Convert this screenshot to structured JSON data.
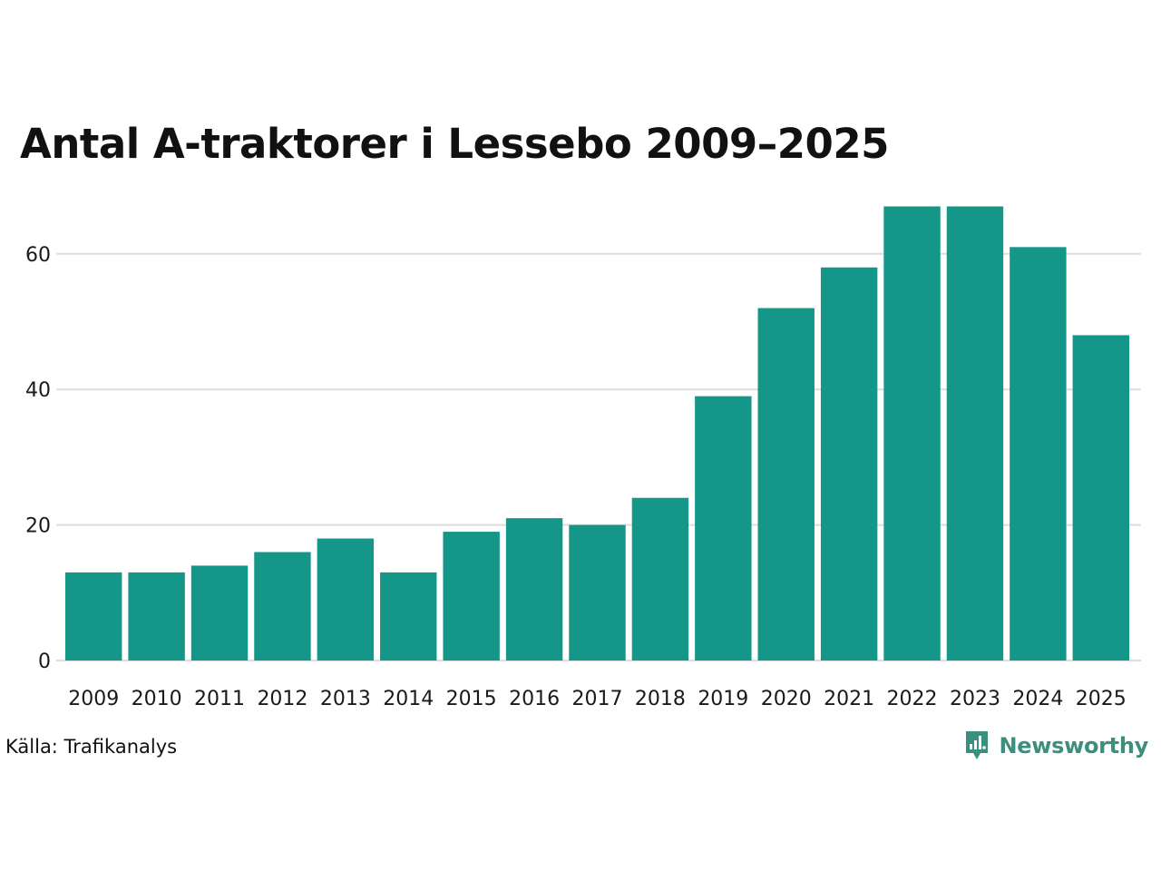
{
  "header": {
    "title": "Antal A-traktorer i Lessebo 2009–2025"
  },
  "footer": {
    "source": "Källa: Trafikanalys",
    "brand": "Newsworthy"
  },
  "colors": {
    "bar": "#149688",
    "grid": "#dddddd",
    "brand": "#3a8f7e"
  },
  "chart_data": {
    "type": "bar",
    "title": "Antal A-traktorer i Lessebo 2009–2025",
    "xlabel": "",
    "ylabel": "",
    "categories": [
      "2009",
      "2010",
      "2011",
      "2012",
      "2013",
      "2014",
      "2015",
      "2016",
      "2017",
      "2018",
      "2019",
      "2020",
      "2021",
      "2022",
      "2023",
      "2024",
      "2025"
    ],
    "values": [
      13,
      13,
      14,
      16,
      18,
      13,
      19,
      21,
      20,
      24,
      39,
      52,
      58,
      67,
      67,
      61,
      48
    ],
    "yticks": [
      0,
      20,
      40,
      60
    ],
    "ylim": [
      0,
      67
    ],
    "grid": true
  }
}
